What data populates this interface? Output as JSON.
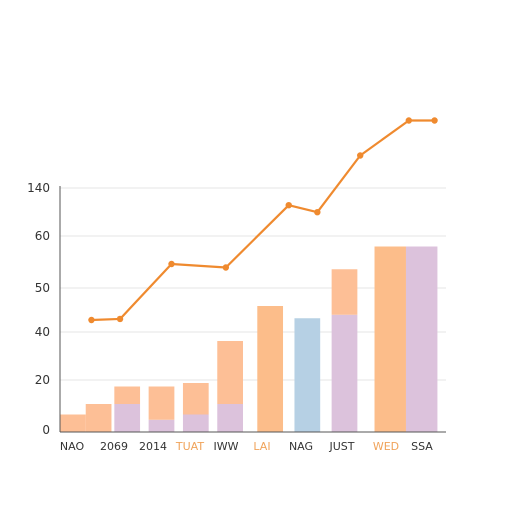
{
  "colors": {
    "orange_light": "#fdbf96",
    "orange_bar": "#fcbd8a",
    "purple_light": "#dcc2dc",
    "blue_light": "#b6d0e4",
    "line_orange": "#ef8a2f",
    "axis": "#555555",
    "grid": "#e6e6e6"
  },
  "chart_data": {
    "type": "bar",
    "y_ticks": [
      "0",
      "20",
      "40",
      "50",
      "60",
      "140"
    ],
    "categories": [
      {
        "label": "NAO",
        "color_key": "default"
      },
      {
        "label": "2069",
        "color_key": "default"
      },
      {
        "label": "2014",
        "color_key": "default"
      },
      {
        "label": "TUAT",
        "color_key": "orange"
      },
      {
        "label": "IWW",
        "color_key": "default"
      },
      {
        "label": "LAI",
        "color_key": "orange"
      },
      {
        "label": "NAG",
        "color_key": "default"
      },
      {
        "label": "JUST",
        "color_key": "default"
      },
      {
        "label": "WED",
        "color_key": "orange"
      },
      {
        "label": "SSA",
        "color_key": "default"
      }
    ],
    "bars": [
      {
        "x0": 0.0,
        "x1": 0.9,
        "layers": [
          {
            "from": 0,
            "to": 0.5,
            "color": "orange_light"
          }
        ]
      },
      {
        "x0": 0.9,
        "x1": 1.8,
        "layers": [
          {
            "from": 0,
            "to": 0.8,
            "color": "orange_light"
          }
        ]
      },
      {
        "x0": 1.9,
        "x1": 2.8,
        "layers": [
          {
            "from": 0,
            "to": 0.8,
            "color": "purple_light"
          },
          {
            "from": 0.8,
            "to": 1.3,
            "color": "orange_light"
          }
        ]
      },
      {
        "x0": 3.1,
        "x1": 4.0,
        "layers": [
          {
            "from": 0,
            "to": 0.35,
            "color": "purple_light"
          },
          {
            "from": 0.35,
            "to": 1.3,
            "color": "orange_light"
          }
        ]
      },
      {
        "x0": 4.3,
        "x1": 5.2,
        "layers": [
          {
            "from": 0,
            "to": 0.5,
            "color": "purple_light"
          },
          {
            "from": 0.5,
            "to": 1.4,
            "color": "orange_light"
          }
        ]
      },
      {
        "x0": 5.5,
        "x1": 6.4,
        "layers": [
          {
            "from": 0,
            "to": 0.8,
            "color": "purple_light"
          },
          {
            "from": 0.8,
            "to": 2.6,
            "color": "orange_light"
          }
        ]
      },
      {
        "x0": 6.9,
        "x1": 7.8,
        "layers": [
          {
            "from": 0,
            "to": 3.6,
            "color": "orange_bar"
          }
        ]
      },
      {
        "x0": 8.2,
        "x1": 9.1,
        "layers": [
          {
            "from": 0,
            "to": 3.25,
            "color": "blue_light"
          }
        ]
      },
      {
        "x0": 9.5,
        "x1": 10.4,
        "layers": [
          {
            "from": 0,
            "to": 3.35,
            "color": "purple_light"
          },
          {
            "from": 3.35,
            "to": 4.65,
            "color": "orange_light"
          }
        ]
      },
      {
        "x0": 11.0,
        "x1": 12.1,
        "layers": [
          {
            "from": 0,
            "to": 5.3,
            "color": "orange_bar"
          }
        ]
      },
      {
        "x0": 12.1,
        "x1": 13.2,
        "layers": [
          {
            "from": 0,
            "to": 5.3,
            "color": "purple_light"
          }
        ]
      }
    ],
    "line": {
      "color": "line_orange",
      "points": [
        {
          "x": 1.1,
          "y": 3.2
        },
        {
          "x": 2.1,
          "y": 3.23
        },
        {
          "x": 3.9,
          "y": 4.8
        },
        {
          "x": 5.8,
          "y": 4.7
        },
        {
          "x": 8.0,
          "y": 6.48
        },
        {
          "x": 9.0,
          "y": 6.28
        },
        {
          "x": 10.5,
          "y": 7.9
        },
        {
          "x": 12.2,
          "y": 8.9
        },
        {
          "x": 13.1,
          "y": 8.9
        }
      ]
    },
    "x_range": [
      0,
      13.5
    ],
    "y_range": [
      0,
      9.5
    ],
    "grid": true,
    "legend": "none"
  }
}
